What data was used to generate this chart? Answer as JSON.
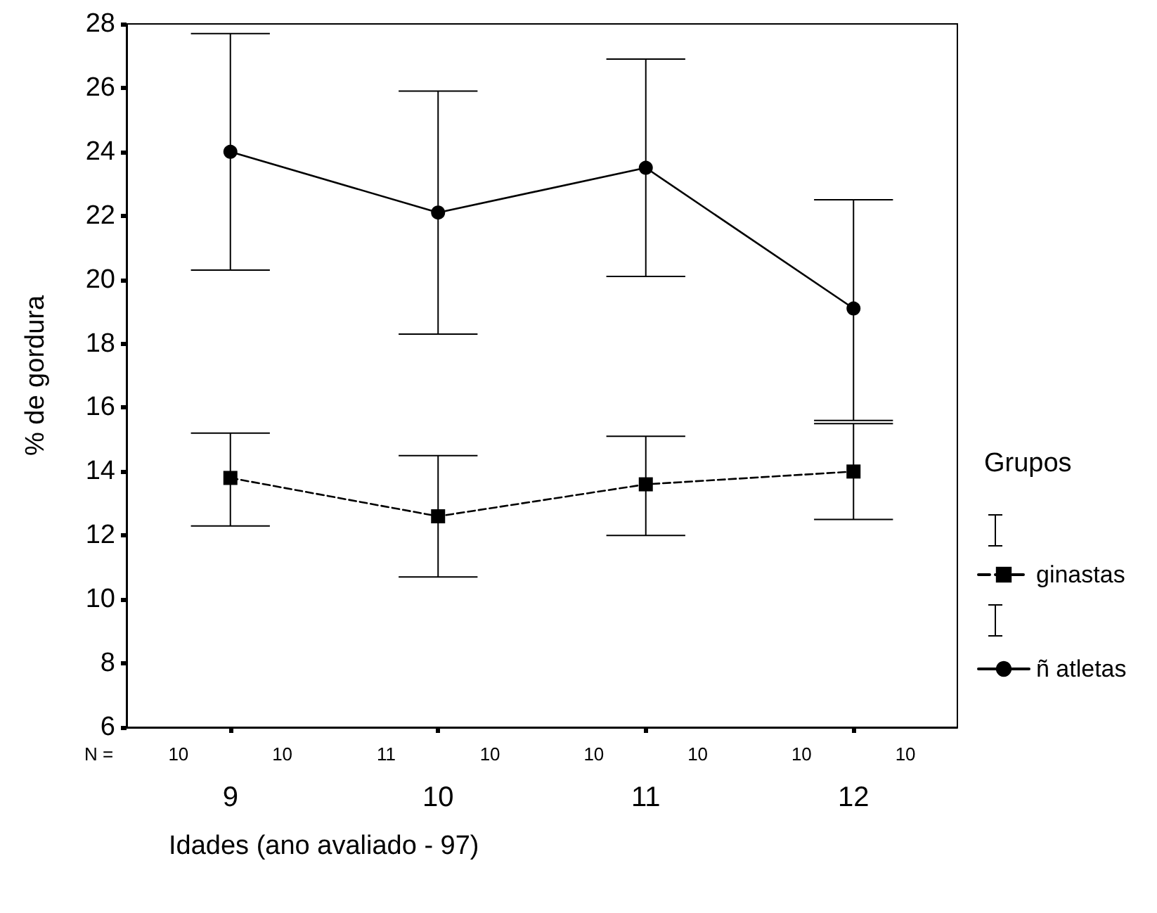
{
  "chart_data": {
    "type": "line",
    "xlabel": "Idades (ano avaliado - 97)",
    "ylabel": "% de gordura",
    "legend_title": "Grupos",
    "categories": [
      "9",
      "10",
      "11",
      "12"
    ],
    "series": [
      {
        "name": "ginastas",
        "color": "#000000",
        "marker": "square",
        "line_style": "dashed",
        "values": [
          13.8,
          12.6,
          13.6,
          14.0
        ],
        "errors": [
          [
            12.3,
            15.2
          ],
          [
            10.7,
            14.5
          ],
          [
            12.0,
            15.1
          ],
          [
            12.5,
            15.5
          ]
        ]
      },
      {
        "name": "ñ atletas",
        "color": "#000000",
        "marker": "circle",
        "line_style": "solid",
        "values": [
          24.0,
          22.1,
          23.5,
          19.1
        ],
        "errors": [
          [
            20.3,
            27.7
          ],
          [
            18.3,
            25.9
          ],
          [
            20.1,
            26.9
          ],
          [
            15.6,
            22.5
          ]
        ]
      }
    ],
    "ylim": [
      6,
      28
    ],
    "yticks": [
      6,
      8,
      10,
      12,
      14,
      16,
      18,
      20,
      22,
      24,
      26,
      28
    ],
    "grid": false,
    "legend": "right",
    "annotations": [
      "N =",
      "10",
      "10",
      "11",
      "10",
      "10",
      "10",
      "10",
      "10"
    ]
  }
}
